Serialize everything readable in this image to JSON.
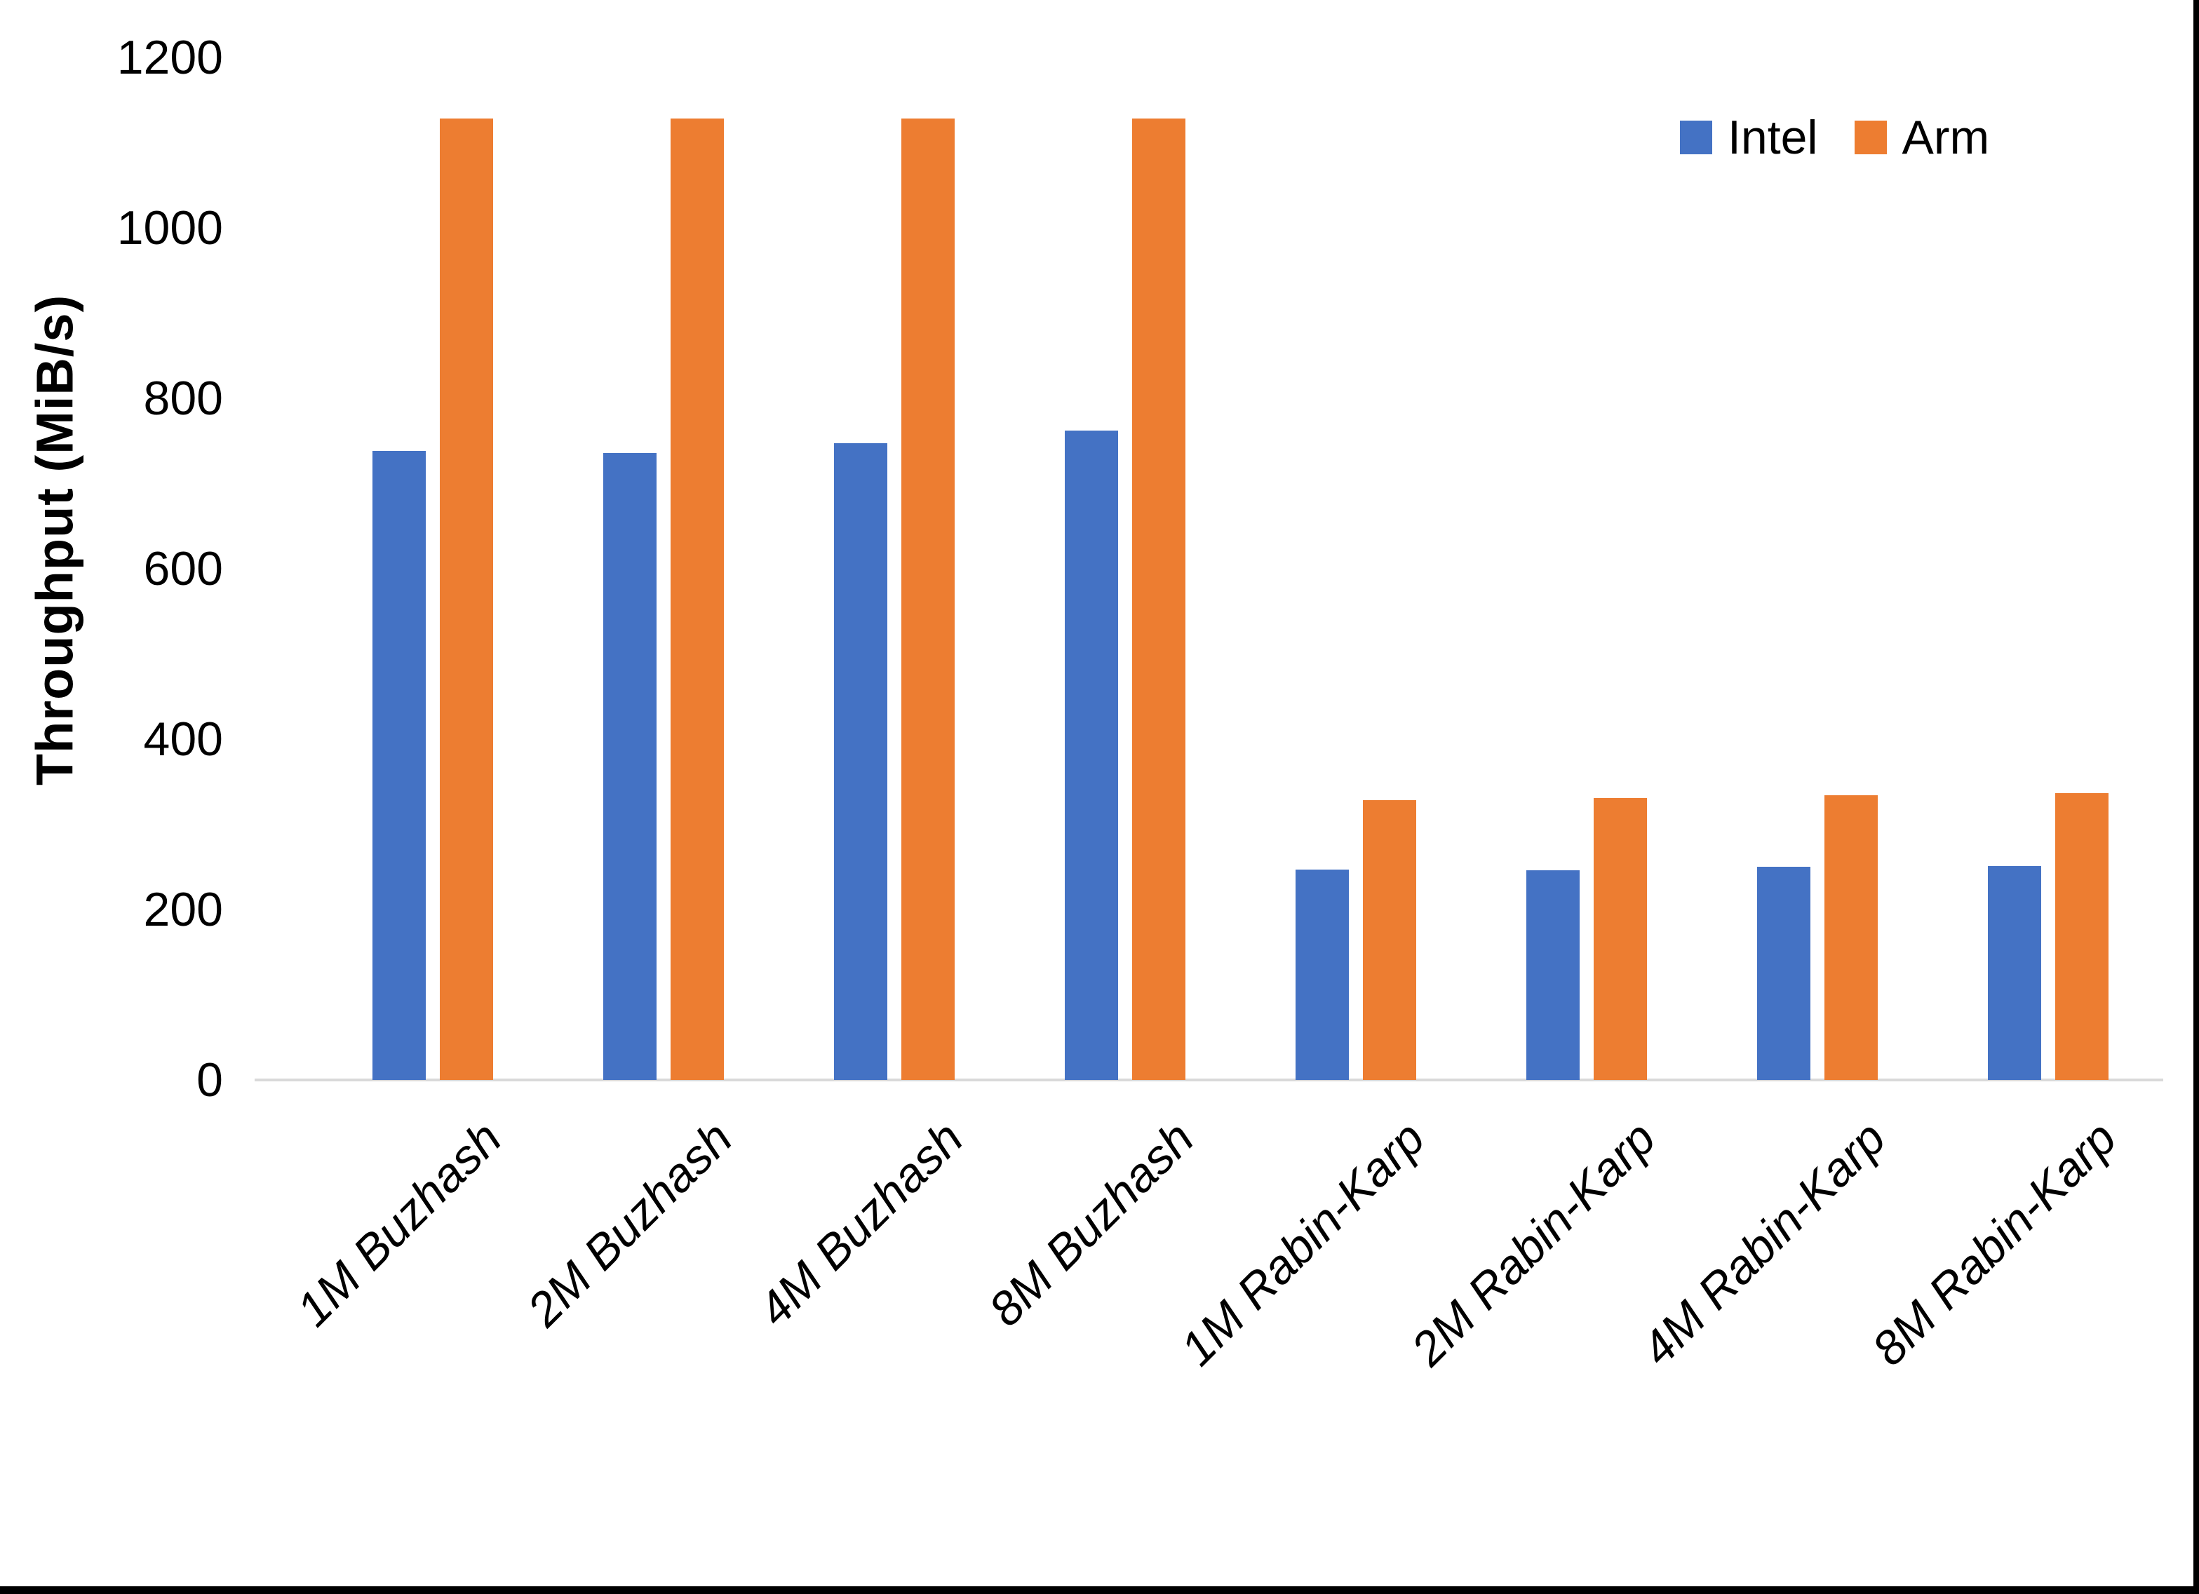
{
  "chart_data": {
    "type": "bar",
    "title": "",
    "xlabel": "",
    "ylabel": "Throughput (MiB/s)",
    "ylim": [
      0,
      1200
    ],
    "yticks": [
      0,
      200,
      400,
      600,
      800,
      1000,
      1200
    ],
    "grid": false,
    "legend_position": "top-right",
    "categories": [
      "1M Buzhash",
      "2M Buzhash",
      "4M Buzhash",
      "8M Buzhash",
      "1M Rabin-Karp",
      "2M Rabin-Karp",
      "4M Rabin-Karp",
      "8M Rabin-Karp"
    ],
    "series": [
      {
        "name": "Intel",
        "color": "#4472C4",
        "values": [
          738,
          736,
          747,
          762,
          247,
          246,
          250,
          251
        ]
      },
      {
        "name": "Arm",
        "color": "#ED7D31",
        "values": [
          1128,
          1128,
          1128,
          1128,
          328,
          331,
          334,
          337
        ]
      }
    ]
  },
  "frame": {
    "bottom_border_color": "#000000",
    "right_border_color": "#000000"
  }
}
